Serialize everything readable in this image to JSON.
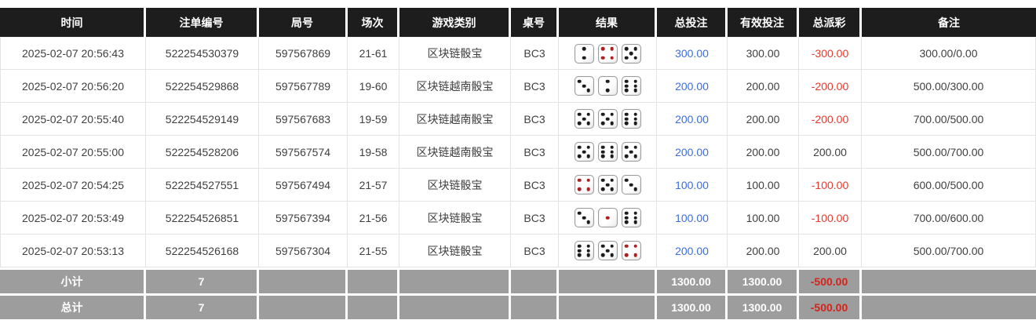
{
  "colors": {
    "header_bg": "#1d1d1d",
    "bet_link_blue": "#3d6ed9",
    "negative_red": "#e8392f",
    "footer_bg": "#9d9d9d",
    "footer_negative_red": "#d2241c",
    "red_pip": "#a82222"
  },
  "table": {
    "columns": [
      {
        "key": "time",
        "label": "时间"
      },
      {
        "key": "bet_id",
        "label": "注单编号"
      },
      {
        "key": "round_no",
        "label": "局号"
      },
      {
        "key": "session",
        "label": "场次"
      },
      {
        "key": "game_type",
        "label": "游戏类别"
      },
      {
        "key": "table_no",
        "label": "桌号"
      },
      {
        "key": "result",
        "label": "结果"
      },
      {
        "key": "total_bet",
        "label": "总投注"
      },
      {
        "key": "valid_bet",
        "label": "有效投注"
      },
      {
        "key": "total_payout",
        "label": "总派彩"
      },
      {
        "key": "remark",
        "label": "备注"
      }
    ],
    "rows": [
      {
        "time": "2025-02-07 20:56:43",
        "bet_id": "522254530379",
        "round_no": "597567869",
        "session": "21-61",
        "game_type": "区块链骰宝",
        "table_no": "BC3",
        "dice": [
          2,
          4,
          5
        ],
        "total_bet": "300.00",
        "valid_bet": "300.00",
        "total_payout": "-300.00",
        "remark": "300.00/0.00"
      },
      {
        "time": "2025-02-07 20:56:20",
        "bet_id": "522254529868",
        "round_no": "597567789",
        "session": "19-60",
        "game_type": "区块链越南骰宝",
        "table_no": "BC3",
        "dice": [
          3,
          2,
          6
        ],
        "total_bet": "200.00",
        "valid_bet": "200.00",
        "total_payout": "-200.00",
        "remark": "500.00/300.00"
      },
      {
        "time": "2025-02-07 20:55:40",
        "bet_id": "522254529149",
        "round_no": "597567683",
        "session": "19-59",
        "game_type": "区块链越南骰宝",
        "table_no": "BC3",
        "dice": [
          5,
          5,
          6
        ],
        "total_bet": "200.00",
        "valid_bet": "200.00",
        "total_payout": "-200.00",
        "remark": "700.00/500.00"
      },
      {
        "time": "2025-02-07 20:55:00",
        "bet_id": "522254528206",
        "round_no": "597567574",
        "session": "19-58",
        "game_type": "区块链越南骰宝",
        "table_no": "BC3",
        "dice": [
          5,
          6,
          5
        ],
        "total_bet": "200.00",
        "valid_bet": "200.00",
        "total_payout": "200.00",
        "remark": "500.00/700.00"
      },
      {
        "time": "2025-02-07 20:54:25",
        "bet_id": "522254527551",
        "round_no": "597567494",
        "session": "21-57",
        "game_type": "区块链骰宝",
        "table_no": "BC3",
        "dice": [
          4,
          5,
          3
        ],
        "total_bet": "100.00",
        "valid_bet": "100.00",
        "total_payout": "-100.00",
        "remark": "600.00/500.00"
      },
      {
        "time": "2025-02-07 20:53:49",
        "bet_id": "522254526851",
        "round_no": "597567394",
        "session": "21-56",
        "game_type": "区块链骰宝",
        "table_no": "BC3",
        "dice": [
          3,
          1,
          6
        ],
        "total_bet": "100.00",
        "valid_bet": "100.00",
        "total_payout": "-100.00",
        "remark": "700.00/600.00"
      },
      {
        "time": "2025-02-07 20:53:13",
        "bet_id": "522254526168",
        "round_no": "597567304",
        "session": "21-55",
        "game_type": "区块链骰宝",
        "table_no": "BC3",
        "dice": [
          6,
          5,
          4
        ],
        "total_bet": "200.00",
        "valid_bet": "200.00",
        "total_payout": "200.00",
        "remark": "500.00/700.00"
      }
    ],
    "footer": [
      {
        "name": "subtotal-row",
        "label": "小计",
        "count": "7",
        "total_bet": "1300.00",
        "valid_bet": "1300.00",
        "total_payout": "-500.00",
        "remark": ""
      },
      {
        "name": "total-row",
        "label": "总计",
        "count": "7",
        "total_bet": "1300.00",
        "valid_bet": "1300.00",
        "total_payout": "-500.00",
        "remark": ""
      }
    ],
    "red_pip_values": [
      1,
      4
    ]
  }
}
